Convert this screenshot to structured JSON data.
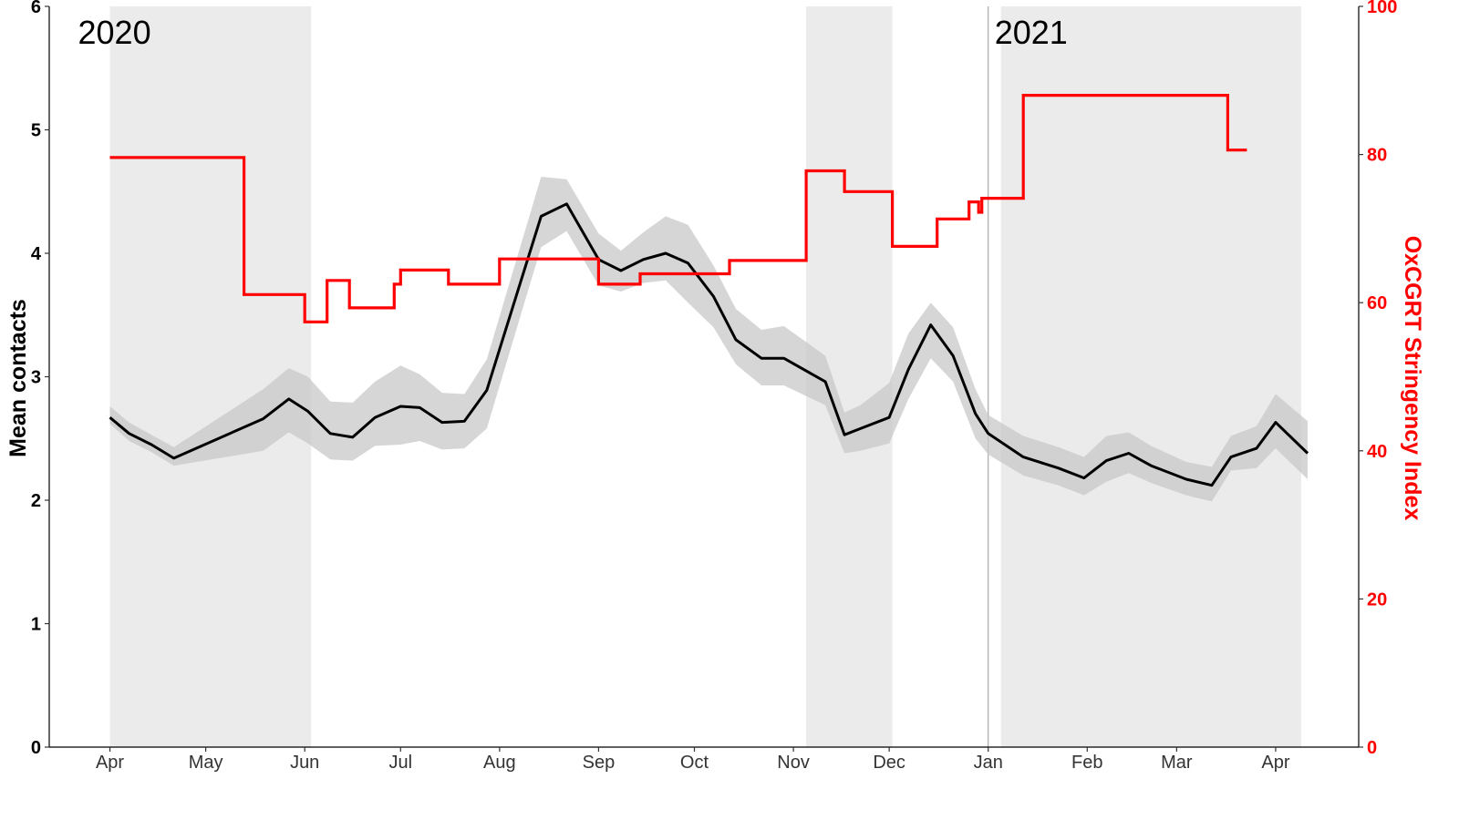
{
  "chart_data": {
    "type": "line",
    "title": "",
    "xlabel": "",
    "ylabel": "Mean contacts",
    "ylabel_right": "OxCGRT Stringency Index",
    "ylim": [
      0,
      6
    ],
    "ylim_right": [
      0,
      100
    ],
    "y_ticks": [
      "0",
      "1",
      "2",
      "3",
      "4",
      "5",
      "6"
    ],
    "y_ticks_right": [
      "0",
      "20",
      "40",
      "60",
      "80",
      "100"
    ],
    "x_ticks": [
      "Apr",
      "May",
      "Jun",
      "Jul",
      "Aug",
      "Sep",
      "Oct",
      "Nov",
      "Dec",
      "Jan",
      "Feb",
      "Mar",
      "Apr"
    ],
    "x_tick_days": [
      0,
      30,
      61,
      91,
      122,
      153,
      183,
      214,
      244,
      275,
      306,
      334,
      365
    ],
    "xlim_days": [
      -19,
      391
    ],
    "year_labels": [
      {
        "text": "2020",
        "day": -10
      },
      {
        "text": "2021",
        "day": 277
      }
    ],
    "year_divider_day": 275,
    "shaded_periods": [
      {
        "start": 0,
        "end": 63
      },
      {
        "start": 218,
        "end": 245
      },
      {
        "start": 279,
        "end": 373
      }
    ],
    "colors": {
      "contacts": "#000000",
      "ribbon": "#c8c8c8",
      "stringency": "#ff0000",
      "shade": "#ebebeb"
    },
    "series": [
      {
        "name": "Mean contacts",
        "axis": "left",
        "x": [
          0,
          6,
          13,
          20,
          48,
          56,
          62,
          69,
          76,
          83,
          91,
          97,
          104,
          111,
          118,
          135,
          143,
          153,
          160,
          167,
          174,
          181,
          189,
          196,
          204,
          211,
          224,
          230,
          235,
          244,
          250,
          257,
          264,
          271,
          275,
          286,
          297,
          305,
          312,
          319,
          326,
          337,
          345,
          351,
          359,
          365,
          375
        ],
        "values": [
          2.67,
          2.54,
          2.45,
          2.34,
          2.66,
          2.82,
          2.72,
          2.54,
          2.51,
          2.67,
          2.76,
          2.75,
          2.63,
          2.64,
          2.89,
          4.3,
          4.4,
          3.95,
          3.86,
          3.95,
          4.0,
          3.92,
          3.65,
          3.3,
          3.15,
          3.15,
          2.96,
          2.53,
          2.58,
          2.67,
          3.06,
          3.42,
          3.17,
          2.7,
          2.54,
          2.35,
          2.26,
          2.18,
          2.32,
          2.38,
          2.28,
          2.17,
          2.12,
          2.35,
          2.42,
          2.63,
          2.38
        ],
        "lower": [
          2.62,
          2.48,
          2.39,
          2.28,
          2.4,
          2.55,
          2.46,
          2.33,
          2.32,
          2.44,
          2.45,
          2.48,
          2.41,
          2.42,
          2.58,
          4.05,
          4.18,
          3.74,
          3.69,
          3.76,
          3.78,
          3.6,
          3.4,
          3.1,
          2.93,
          2.93,
          2.77,
          2.38,
          2.4,
          2.46,
          2.82,
          3.15,
          2.96,
          2.5,
          2.37,
          2.2,
          2.12,
          2.04,
          2.15,
          2.22,
          2.14,
          2.04,
          1.99,
          2.24,
          2.26,
          2.42,
          2.17
        ],
        "upper": [
          2.76,
          2.63,
          2.53,
          2.43,
          2.9,
          3.07,
          3.0,
          2.8,
          2.79,
          2.96,
          3.09,
          3.02,
          2.87,
          2.86,
          3.14,
          4.62,
          4.6,
          4.16,
          4.02,
          4.17,
          4.3,
          4.23,
          3.9,
          3.55,
          3.38,
          3.41,
          3.17,
          2.71,
          2.77,
          2.95,
          3.35,
          3.6,
          3.4,
          2.9,
          2.69,
          2.52,
          2.43,
          2.35,
          2.52,
          2.55,
          2.44,
          2.31,
          2.27,
          2.52,
          2.6,
          2.86,
          2.64
        ]
      },
      {
        "name": "OxCGRT Stringency Index",
        "axis": "right",
        "step": true,
        "x": [
          0,
          42,
          61,
          68,
          75,
          89,
          91,
          106,
          122,
          153,
          166,
          194,
          218,
          230,
          245,
          259,
          269,
          272,
          273,
          286,
          350,
          356
        ],
        "values": [
          79.6,
          61.1,
          57.4,
          63.0,
          59.3,
          62.5,
          64.4,
          62.5,
          65.9,
          62.5,
          63.9,
          65.7,
          77.8,
          75.0,
          67.6,
          71.3,
          73.6,
          72.2,
          74.1,
          88.0,
          80.6,
          80.6
        ]
      }
    ]
  }
}
